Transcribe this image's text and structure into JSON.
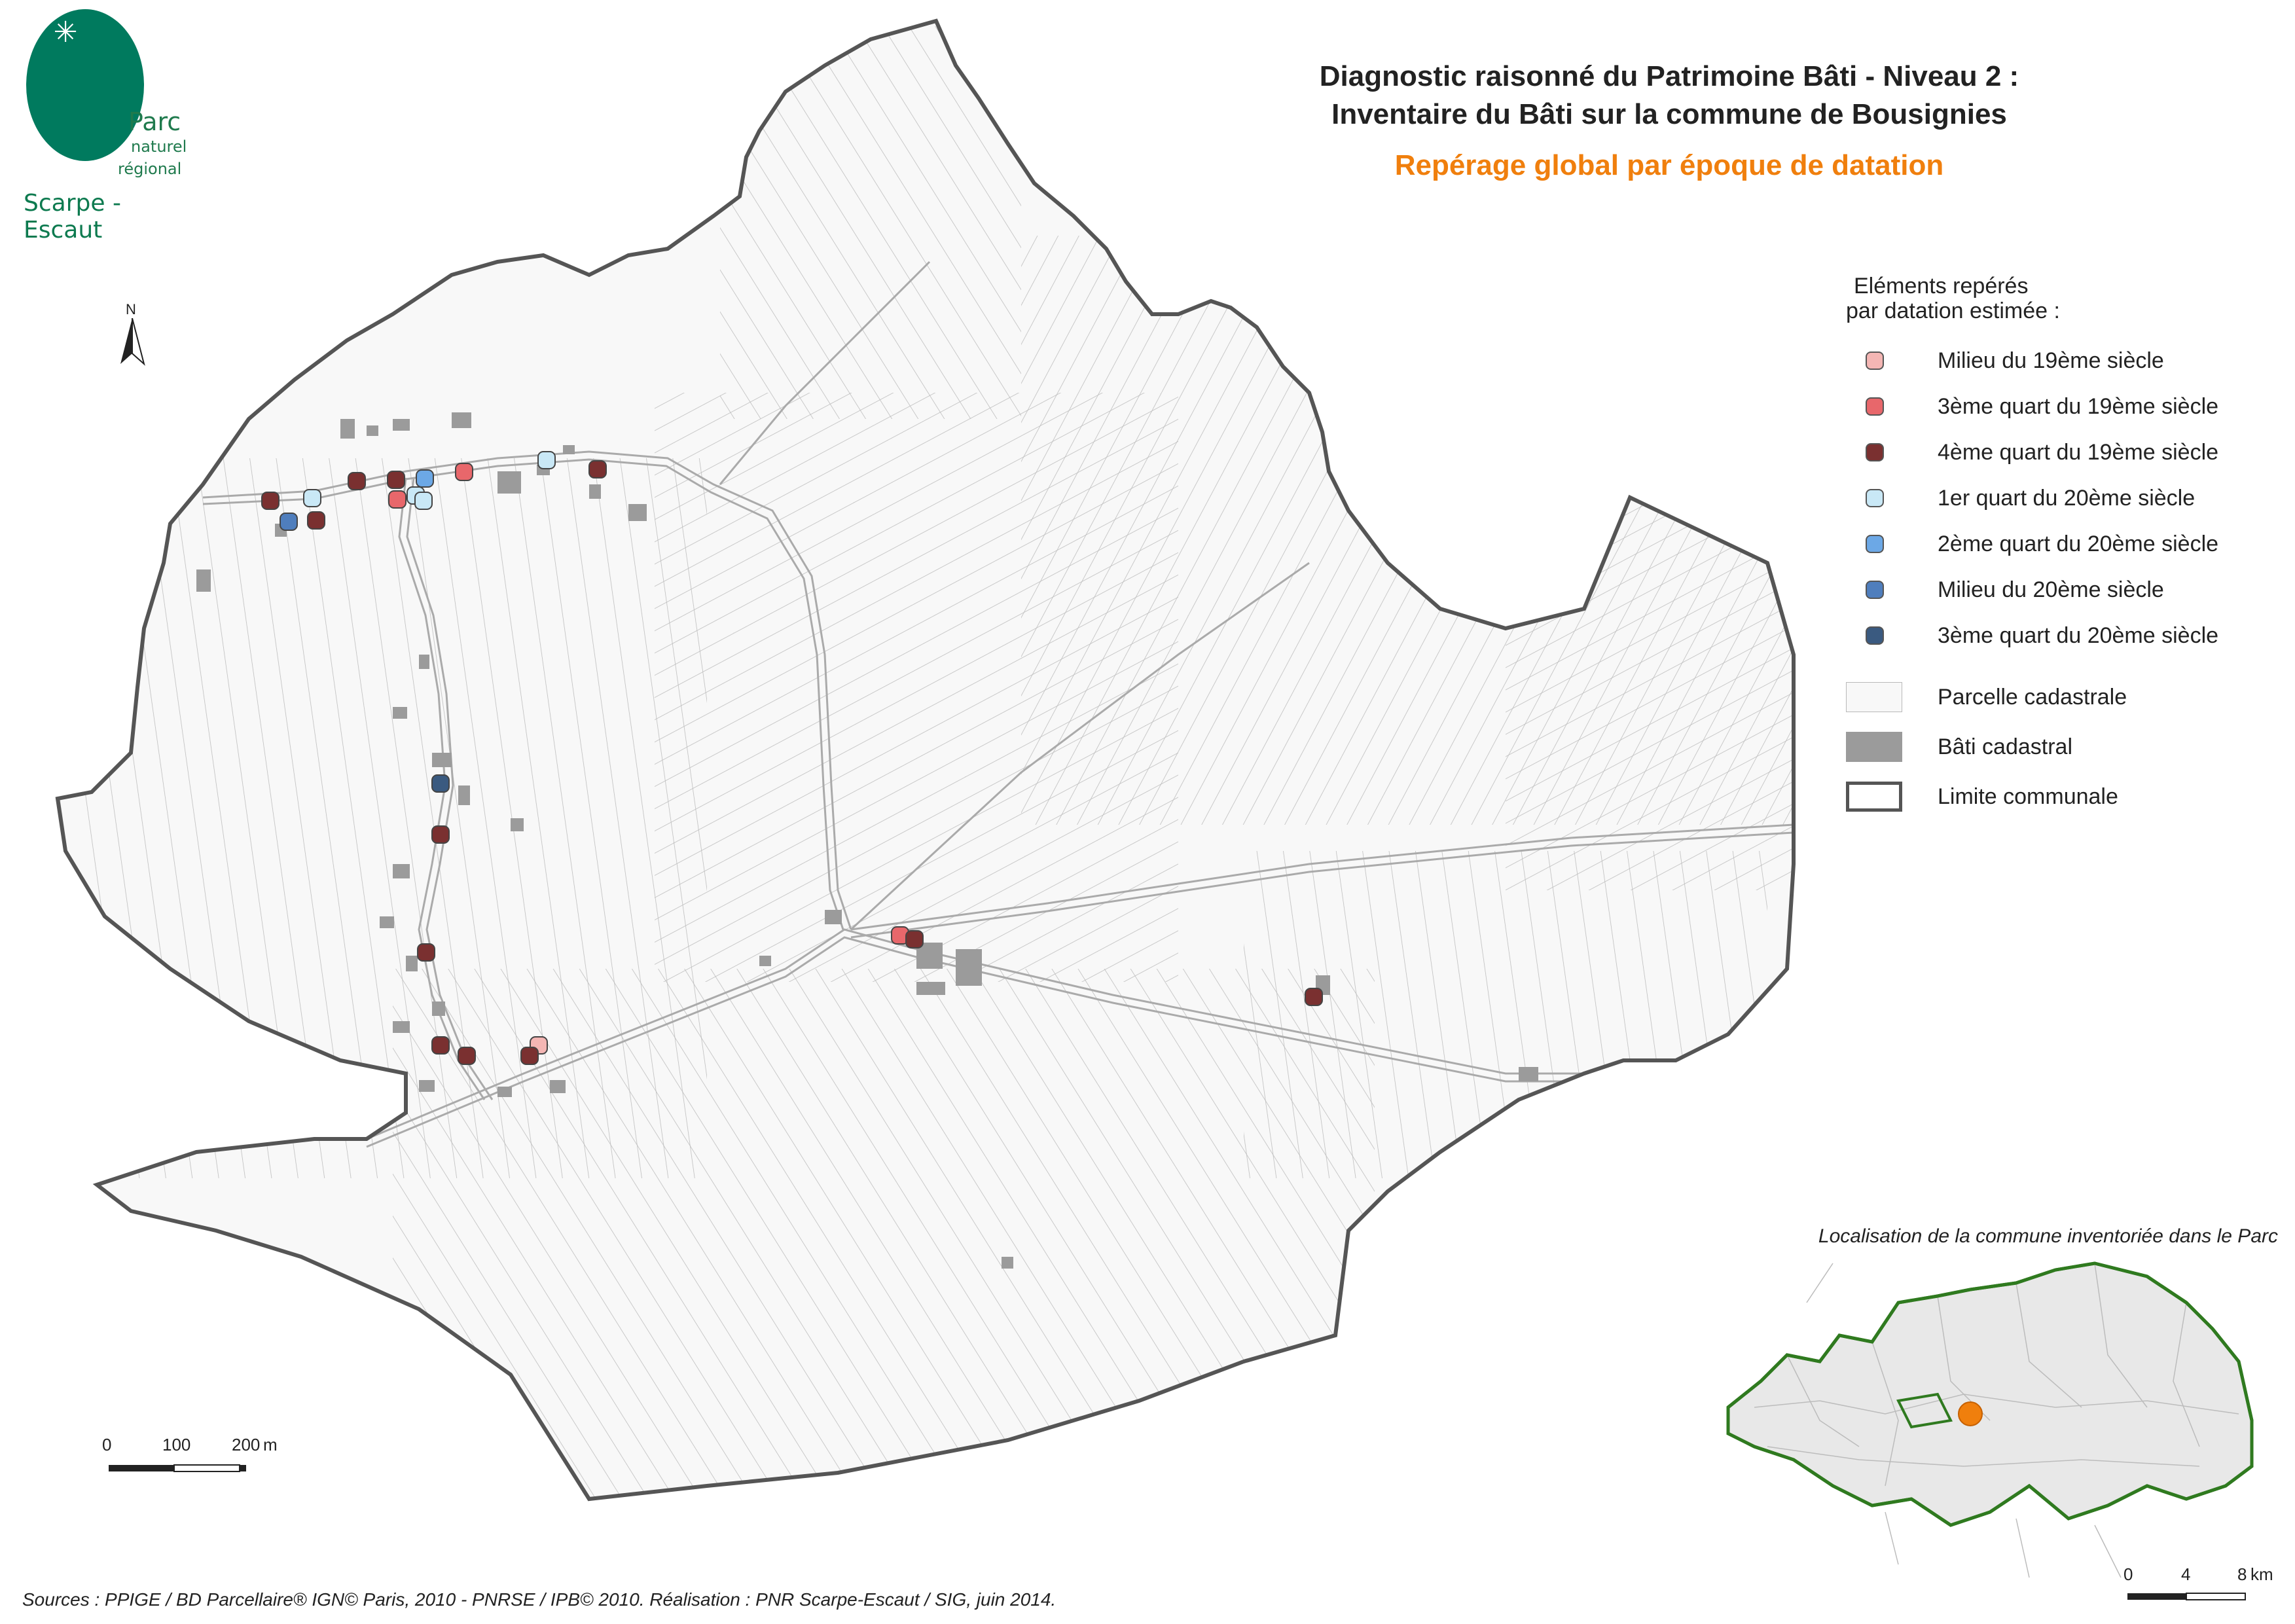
{
  "logo": {
    "line1": "Parc",
    "line2": "naturel",
    "line3": "régional",
    "line4": "Scarpe - Escaut"
  },
  "title": {
    "line1": "Diagnostic raisonné du Patrimoine Bâti - Niveau 2 :",
    "line2": "Inventaire du Bâti sur la commune de Bousignies",
    "subtitle": "Repérage global par époque de datation"
  },
  "legend": {
    "heading_line1": "Eléments repérés",
    "heading_line2": "par datation estimée :",
    "dating_items": [
      {
        "label": "Milieu du 19ème siècle",
        "color": "#f4b6b4"
      },
      {
        "label": "3ème quart du 19ème siècle",
        "color": "#e8676b"
      },
      {
        "label": "4ème quart du 19ème siècle",
        "color": "#7a3030"
      },
      {
        "label": "1er quart du 20ème siècle",
        "color": "#c9e8f6"
      },
      {
        "label": "2ème quart du 20ème siècle",
        "color": "#6ca8e6"
      },
      {
        "label": "Milieu du 20ème siècle",
        "color": "#4f7ebd"
      },
      {
        "label": "3ème quart du 20ème siècle",
        "color": "#3a5a80"
      }
    ],
    "layer_items": [
      {
        "label": "Parcelle cadastrale",
        "kind": "parcel"
      },
      {
        "label": "Bâti cadastral",
        "kind": "building"
      },
      {
        "label": "Limite communale",
        "kind": "boundary"
      }
    ]
  },
  "north": {
    "label": "N"
  },
  "scale_main": {
    "ticks": [
      "0",
      "100",
      "200"
    ],
    "unit": "m"
  },
  "scale_inset": {
    "ticks": [
      "0",
      "4",
      "8"
    ],
    "unit": "km"
  },
  "inset": {
    "caption": "Localisation de la commune inventoriée dans le Parc",
    "park_outline_color": "#2f7a1f",
    "highlight_color": "#f07f0d"
  },
  "colors": {
    "parcel_fill": "#f8f8f8",
    "parcel_stroke": "#b9b9b9",
    "building_fill": "#9b9b9b",
    "boundary_stroke": "#555555"
  },
  "sources": "Sources : PPIGE / BD Parcellaire® IGN© Paris, 2010 - PNRSE / IPB© 2010. Réalisation : PNR Scarpe-Escaut / SIG, juin 2014."
}
